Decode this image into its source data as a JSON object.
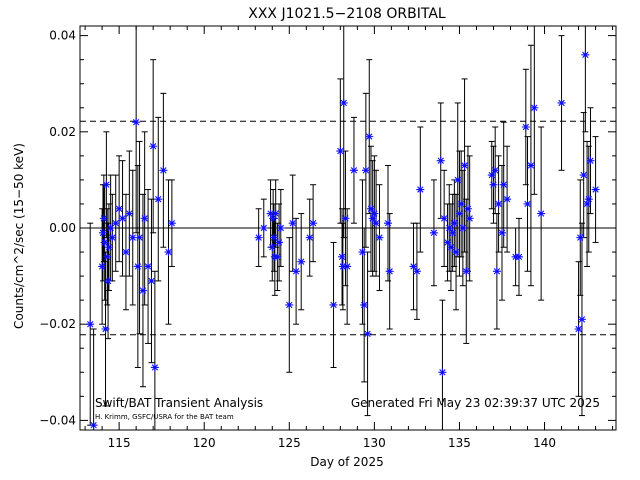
{
  "chart_data": {
    "type": "scatter",
    "title": "XXX J1021.5−2108 ORBITAL",
    "xlabel": "Day of 2025",
    "ylabel": "Counts/cm^2/sec (15−50 keV)",
    "xlim": [
      112.7,
      144.2
    ],
    "ylim": [
      -0.042,
      0.042
    ],
    "x_ticks": [
      115,
      120,
      125,
      130,
      135,
      140
    ],
    "y_ticks": [
      -0.04,
      -0.02,
      0.0,
      0.02,
      0.04
    ],
    "y_tick_labels": [
      "−0.04",
      "−0.02",
      "0.00",
      "0.02",
      "0.04"
    ],
    "reference_lines": {
      "zero": 0.0,
      "upper_dashed": 0.0222,
      "lower_dashed": -0.0222
    },
    "footer_left": "Swift/BAT Transient Analysis",
    "footer_credit": "H. Krimm, GSFC/USRA for the BAT team",
    "footer_right": "Generated Fri May 23 02:39:37 UTC 2025",
    "colors": {
      "points": "#1010ff",
      "lines": "#000000"
    },
    "series": [
      {
        "x": [
          113.3,
          113.5,
          114.0,
          114.05,
          114.1,
          114.15,
          114.2,
          114.25,
          114.3,
          114.35,
          114.4,
          114.5,
          114.6,
          114.8,
          115.0,
          115.2,
          115.4,
          115.6,
          115.8,
          116.0,
          116.1,
          116.2,
          116.4,
          116.5,
          116.7,
          116.9,
          117.0,
          117.1,
          117.3,
          117.6,
          117.9,
          118.1,
          123.2,
          123.5,
          123.9,
          124.0,
          124.05,
          124.1,
          124.15,
          124.2,
          124.3,
          124.4,
          124.5,
          125.0,
          125.2,
          125.4,
          125.7,
          126.2,
          126.4,
          127.6,
          128.0,
          128.1,
          128.15,
          128.2,
          128.3,
          128.4,
          128.8,
          129.3,
          129.4,
          129.5,
          129.6,
          129.7,
          129.8,
          129.9,
          130.0,
          130.1,
          130.3,
          130.8,
          130.9,
          132.3,
          132.5,
          132.7,
          133.5,
          133.9,
          134.0,
          134.1,
          134.3,
          134.4,
          134.5,
          134.6,
          134.7,
          134.8,
          134.9,
          135.0,
          135.1,
          135.2,
          135.3,
          135.4,
          135.5,
          135.6,
          136.9,
          137.0,
          137.1,
          137.2,
          137.3,
          137.5,
          137.6,
          137.8,
          138.3,
          138.5,
          138.9,
          139.0,
          139.2,
          139.4,
          139.8,
          141.0,
          142.0,
          142.1,
          142.2,
          142.3,
          142.4,
          142.5,
          142.6,
          142.7,
          143.0
        ],
        "y": [
          -0.02,
          -0.041,
          -0.008,
          -0.001,
          0.002,
          -0.003,
          -0.021,
          0.009,
          -0.006,
          -0.011,
          -0.004,
          0.0,
          -0.002,
          0.001,
          0.004,
          0.002,
          -0.005,
          0.003,
          -0.002,
          0.022,
          -0.008,
          -0.002,
          -0.013,
          0.002,
          -0.008,
          -0.011,
          0.017,
          -0.029,
          0.006,
          0.012,
          -0.005,
          0.001,
          -0.002,
          0.0,
          0.003,
          -0.004,
          0.002,
          -0.002,
          -0.006,
          0.003,
          -0.006,
          -0.003,
          0.0,
          -0.016,
          0.001,
          -0.009,
          -0.007,
          -0.002,
          0.001,
          -0.016,
          0.016,
          -0.006,
          -0.008,
          0.026,
          0.002,
          -0.008,
          0.012,
          -0.005,
          -0.016,
          0.012,
          -0.022,
          0.019,
          0.004,
          0.002,
          0.003,
          0.001,
          -0.002,
          0.001,
          -0.009,
          -0.008,
          -0.009,
          0.008,
          -0.001,
          0.014,
          -0.03,
          0.002,
          -0.003,
          0.0,
          -0.004,
          -0.001,
          0.001,
          -0.005,
          0.01,
          0.003,
          0.005,
          0.0,
          0.013,
          -0.009,
          0.004,
          0.002,
          0.011,
          0.009,
          0.012,
          -0.009,
          0.005,
          -0.001,
          0.009,
          0.006,
          -0.006,
          -0.006,
          0.021,
          0.005,
          0.013,
          0.025,
          0.003,
          0.026,
          -0.021,
          -0.002,
          -0.019,
          0.011,
          0.036,
          0.005,
          0.006,
          0.014,
          0.008
        ],
        "err": [
          0.021,
          0.02,
          0.012,
          0.01,
          0.009,
          0.012,
          0.016,
          0.011,
          0.01,
          0.012,
          0.009,
          0.011,
          0.009,
          0.01,
          0.011,
          0.012,
          0.012,
          0.013,
          0.014,
          0.023,
          0.021,
          0.02,
          0.02,
          0.018,
          0.016,
          0.017,
          0.018,
          0.02,
          0.017,
          0.016,
          0.015,
          0.009,
          0.006,
          0.006,
          0.007,
          0.007,
          0.006,
          0.007,
          0.008,
          0.007,
          0.007,
          0.008,
          0.008,
          0.014,
          0.01,
          0.011,
          0.01,
          0.008,
          0.008,
          0.013,
          0.015,
          0.01,
          0.009,
          0.028,
          0.014,
          0.012,
          0.011,
          0.015,
          0.016,
          0.016,
          0.017,
          0.016,
          0.013,
          0.012,
          0.012,
          0.011,
          0.011,
          0.012,
          0.012,
          0.009,
          0.01,
          0.013,
          0.011,
          0.012,
          0.015,
          0.01,
          0.008,
          0.009,
          0.009,
          0.008,
          0.009,
          0.012,
          0.016,
          0.013,
          0.011,
          0.012,
          0.018,
          0.015,
          0.013,
          0.013,
          0.007,
          0.008,
          0.009,
          0.012,
          0.01,
          0.014,
          0.013,
          0.011,
          0.006,
          0.008,
          0.012,
          0.014,
          0.025,
          0.018,
          0.018,
          0.014,
          0.014,
          0.012,
          0.02,
          0.013,
          0.016,
          0.013,
          0.011,
          0.011,
          0.011
        ]
      }
    ]
  }
}
